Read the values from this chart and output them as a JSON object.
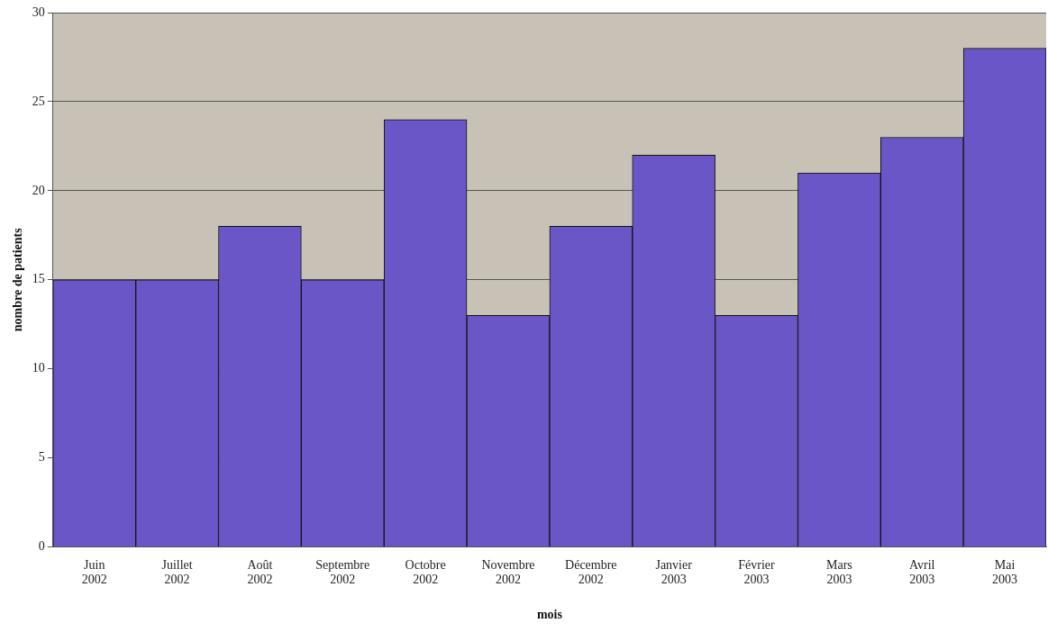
{
  "chart_data": {
    "type": "bar",
    "xlabel": "mois",
    "ylabel": "nombre de patients",
    "categories": [
      "Juin 2002",
      "Juillet 2002",
      "Août 2002",
      "Septembre 2002",
      "Octobre 2002",
      "Novembre 2002",
      "Décembre 2002",
      "Janvier 2003",
      "Février 2003",
      "Mars 2003",
      "Avril 2003",
      "Mai 2003"
    ],
    "values": [
      15,
      15,
      18,
      15,
      24,
      13,
      18,
      22,
      13,
      21,
      23,
      28
    ],
    "color": "#6a56c6",
    "ylim": [
      0,
      30
    ],
    "yticks": [
      0,
      5,
      10,
      15,
      20,
      25,
      30
    ],
    "grid": "y",
    "legend": false
  }
}
